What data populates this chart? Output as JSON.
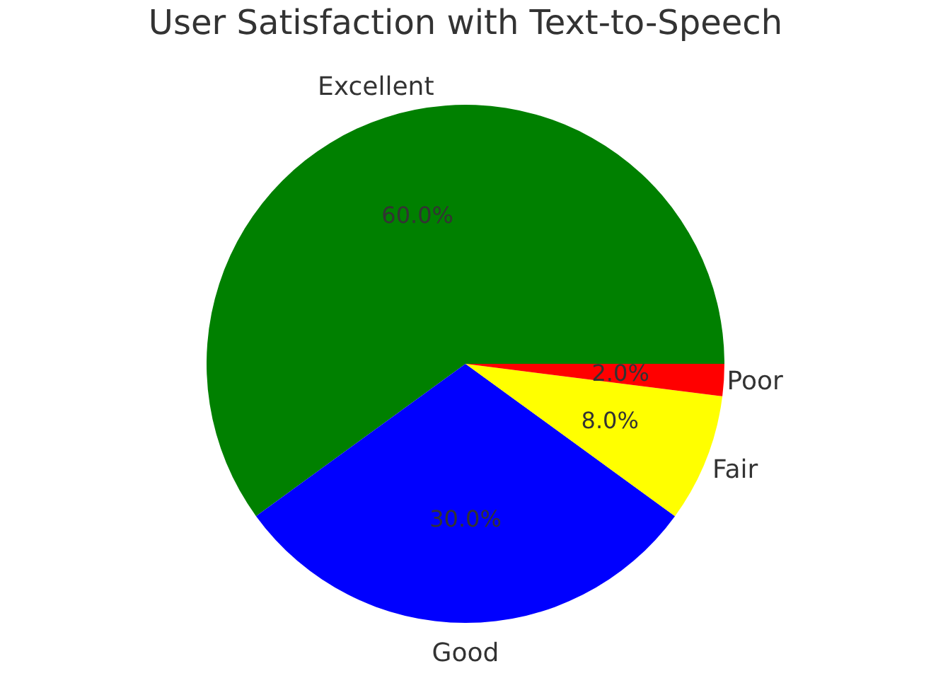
{
  "chart_data": {
    "type": "pie",
    "title": "User Satisfaction with Text-to-Speech",
    "categories": [
      "Excellent",
      "Good",
      "Fair",
      "Poor"
    ],
    "values": [
      60,
      30,
      8,
      2
    ],
    "colors": [
      "#008000",
      "#0000ff",
      "#ffff00",
      "#ff0000"
    ],
    "value_labels": [
      "60.0%",
      "30.0%",
      "8.0%",
      "2.0%"
    ],
    "legend": false
  }
}
